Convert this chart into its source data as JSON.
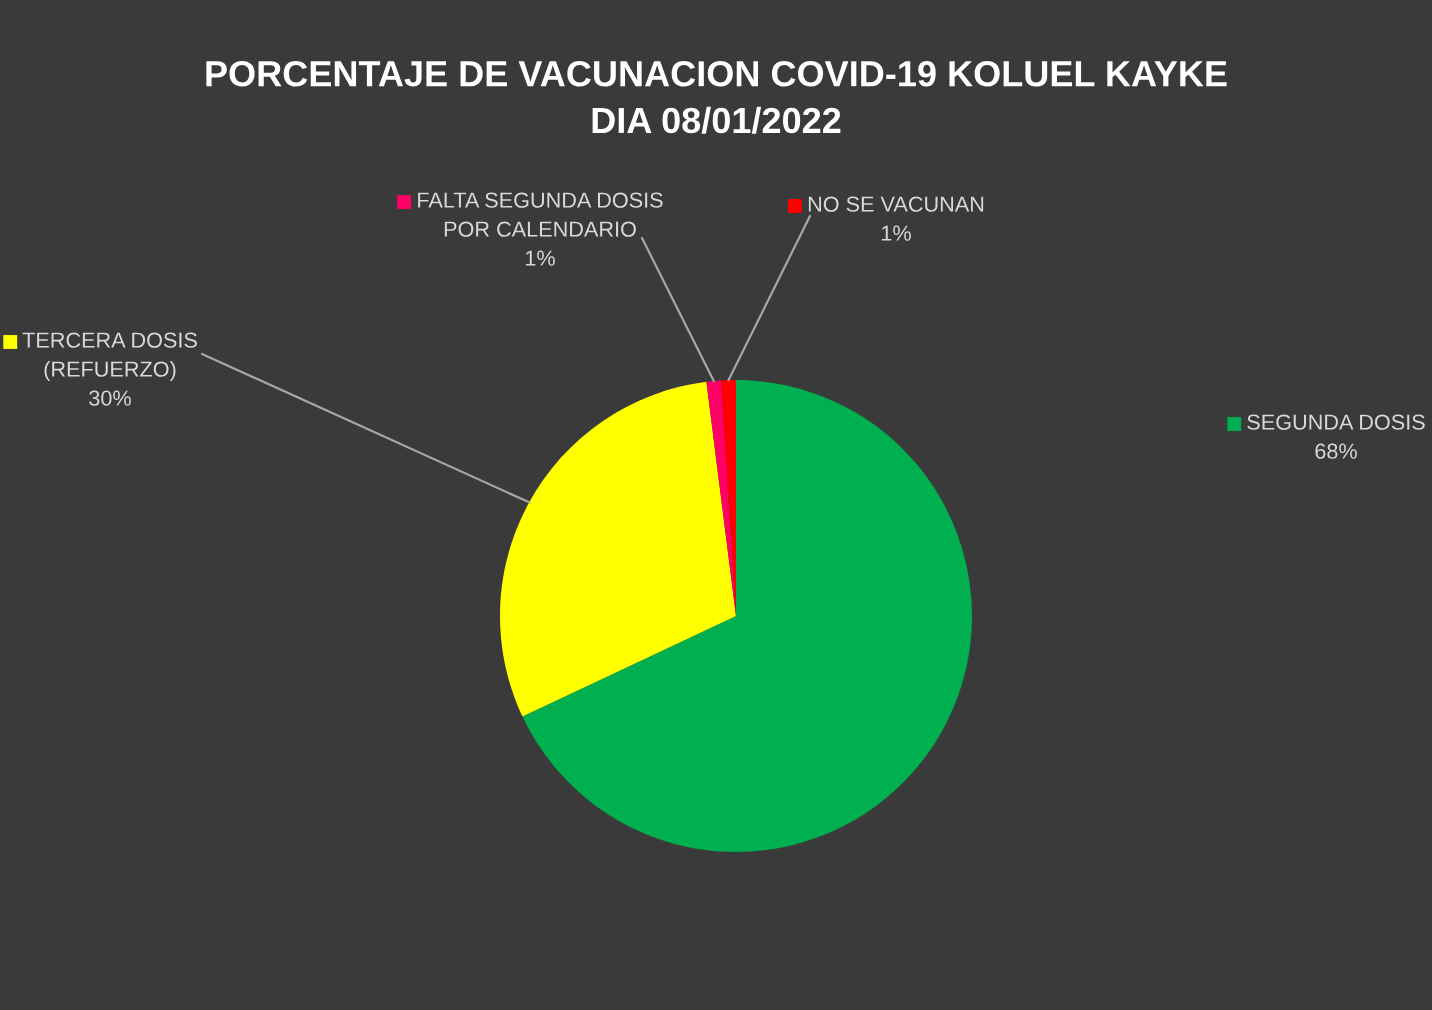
{
  "chart_data": {
    "type": "pie",
    "title": "PORCENTAJE DE VACUNACION COVID-19 KOLUEL KAYKE\nDIA 08/01/2022",
    "categories": [
      "SEGUNDA DOSIS",
      "TERCERA DOSIS\n(REFUERZO)",
      "FALTA SEGUNDA DOSIS\nPOR CALENDARIO",
      "NO SE VACUNAN"
    ],
    "values": [
      68,
      30,
      1,
      1
    ],
    "colors": [
      "#00b050",
      "#ffff00",
      "#ff0066",
      "#ff0000"
    ],
    "value_labels": [
      "68%",
      "30%",
      "1%",
      "1%"
    ],
    "legend": "top"
  }
}
